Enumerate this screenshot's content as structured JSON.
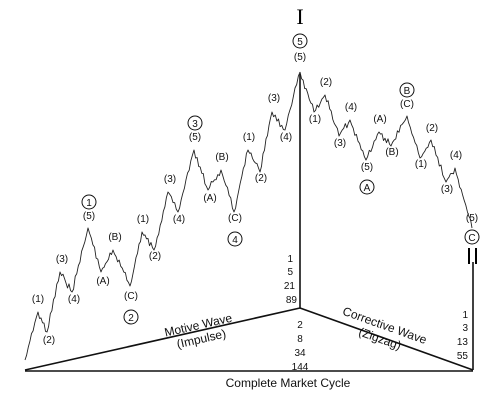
{
  "diagram": {
    "top_marker": "I",
    "end_marker": "II",
    "peak": {
      "circle": "5",
      "paren": "(5)"
    },
    "motive_labels": [
      {
        "id": "m1",
        "text": "(1)"
      },
      {
        "id": "m2",
        "text": "(2)"
      },
      {
        "id": "m3",
        "text": "(3)"
      },
      {
        "id": "m4",
        "text": "(4)"
      },
      {
        "id": "m5",
        "text": "(5)"
      },
      {
        "id": "mA",
        "text": "(A)"
      },
      {
        "id": "mB",
        "text": "(B)"
      },
      {
        "id": "mC",
        "text": "(C)"
      },
      {
        "id": "m1b",
        "text": "(1)"
      },
      {
        "id": "m2b",
        "text": "(2)"
      },
      {
        "id": "m3b",
        "text": "(3)"
      },
      {
        "id": "m4b",
        "text": "(4)"
      },
      {
        "id": "m5b",
        "text": "(5)"
      },
      {
        "id": "mAb",
        "text": "(A)"
      },
      {
        "id": "mBb",
        "text": "(B)"
      },
      {
        "id": "mCb",
        "text": "(C)"
      },
      {
        "id": "m1c",
        "text": "(1)"
      },
      {
        "id": "m2c",
        "text": "(2)"
      },
      {
        "id": "m3c",
        "text": "(3)"
      },
      {
        "id": "m4c",
        "text": "(4)"
      }
    ],
    "corrective_labels": [
      {
        "id": "c1",
        "text": "(1)"
      },
      {
        "id": "c2",
        "text": "(2)"
      },
      {
        "id": "c3",
        "text": "(3)"
      },
      {
        "id": "c4",
        "text": "(4)"
      },
      {
        "id": "c5",
        "text": "(5)"
      },
      {
        "id": "cA",
        "text": "(A)"
      },
      {
        "id": "cB",
        "text": "(B)"
      },
      {
        "id": "cC",
        "text": "(C)"
      },
      {
        "id": "c1b",
        "text": "(1)"
      },
      {
        "id": "c2b",
        "text": "(2)"
      },
      {
        "id": "c3b",
        "text": "(3)"
      },
      {
        "id": "c4b",
        "text": "(4)"
      },
      {
        "id": "c5b",
        "text": "(5)"
      }
    ],
    "circled": [
      {
        "id": "k1",
        "text": "1"
      },
      {
        "id": "k2",
        "text": "2"
      },
      {
        "id": "k3",
        "text": "3"
      },
      {
        "id": "k4",
        "text": "4"
      },
      {
        "id": "kA",
        "text": "A"
      },
      {
        "id": "kB",
        "text": "B"
      },
      {
        "id": "kC",
        "text": "C"
      }
    ],
    "counts_center_upper": [
      "1",
      "5",
      "21",
      "89"
    ],
    "counts_center_lower": [
      "2",
      "8",
      "34",
      "144"
    ],
    "counts_right": [
      "1",
      "3",
      "13",
      "55"
    ],
    "motive_title": "Motive Wave",
    "motive_sub": "(Impulse)",
    "corrective_title": "Corrective Wave",
    "corrective_sub": "(Zigzag)",
    "cycle_label": "Complete Market Cycle"
  }
}
